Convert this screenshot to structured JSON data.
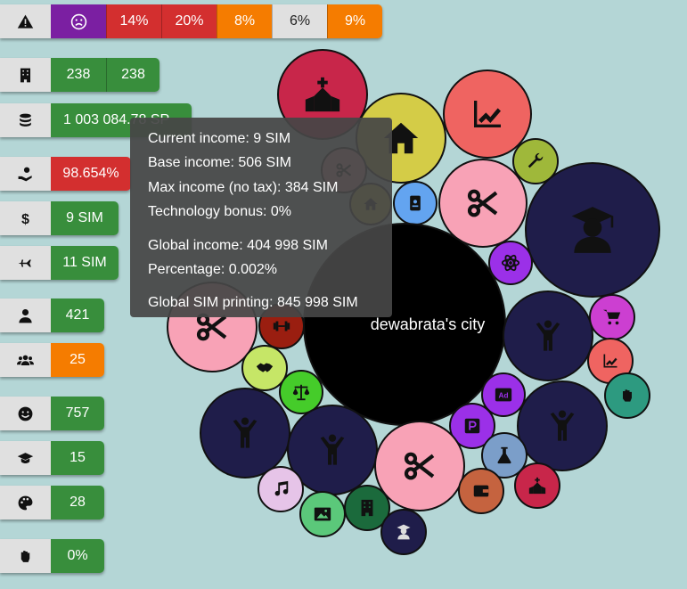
{
  "stats": {
    "mood_row": {
      "icon": "warning-icon",
      "values": [
        "14%",
        "20%",
        "8%",
        "6%",
        "9%"
      ]
    },
    "buildings": {
      "icon": "building-icon",
      "values": [
        "238",
        "238"
      ]
    },
    "money": {
      "icon": "coins-icon",
      "value": "1 003 084.78 SP"
    },
    "tax": {
      "icon": "hand-money-icon",
      "value": "98.654%"
    },
    "income": {
      "icon": "dollar-icon",
      "value": "9 SIM"
    },
    "flights": {
      "icon": "plane-icon",
      "value": "11 SIM"
    },
    "population": {
      "icon": "person-icon",
      "value": "421"
    },
    "groups": {
      "icon": "group-icon",
      "value": "25"
    },
    "happiness": {
      "icon": "smile-icon",
      "value": "757"
    },
    "education": {
      "icon": "graduation-cap-icon",
      "value": "15"
    },
    "culture": {
      "icon": "palette-icon",
      "value": "28"
    },
    "protest": {
      "icon": "fist-icon",
      "value": "0%"
    }
  },
  "city": {
    "name": "dewabrata's city"
  },
  "tooltip": {
    "current_income": "Current income: 9 SIM",
    "base_income": "Base income: 506 SIM",
    "max_income": "Max income (no tax): 384 SIM",
    "tech_bonus": "Technology bonus: 0%",
    "global_income": "Global income: 404 998 SIM",
    "percentage": "Percentage: 0.002%",
    "global_printing": "Global SIM printing: 845 998 SIM"
  },
  "colors": {
    "green": "#388e3c",
    "red": "#d32f2f",
    "orange": "#f57c00",
    "purple": "#7b1fa2",
    "navy": "#1f1d4a",
    "pink": "#f8a2b6",
    "crimson": "#c8264a",
    "salmon": "#ef6461",
    "olive": "#d4cc47",
    "lime": "#c6e667"
  }
}
